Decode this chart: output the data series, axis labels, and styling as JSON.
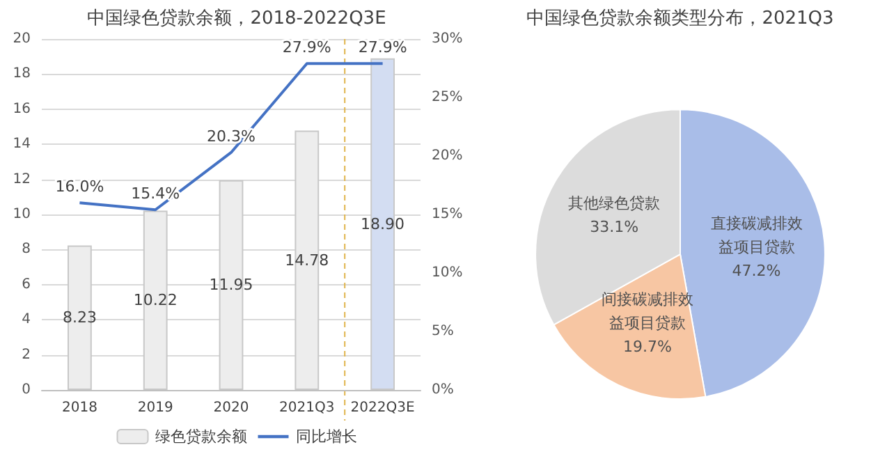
{
  "chart_data": [
    {
      "type": "bar",
      "title": "中国绿色贷款余额，2018-2022Q3E",
      "categories": [
        "2018",
        "2019",
        "2020",
        "2021Q3",
        "2022Q3E"
      ],
      "series": [
        {
          "name": "绿色贷款余额",
          "type": "bar",
          "colors": [
            "#ededed",
            "#ededed",
            "#ededed",
            "#ededed",
            "#d3ddf2"
          ],
          "values": [
            8.23,
            10.22,
            11.95,
            14.78,
            18.9
          ],
          "value_labels": [
            "8.23",
            "10.22",
            "11.95",
            "14.78",
            "18.90"
          ]
        },
        {
          "name": "同比增长",
          "type": "line",
          "axis": "y2",
          "color": "#4472c4",
          "values": [
            16.0,
            15.4,
            20.3,
            27.9,
            27.9
          ],
          "value_labels": [
            "16.0%",
            "15.4%",
            "20.3%",
            "27.9%",
            "27.9%"
          ]
        }
      ],
      "ylim": [
        0,
        20
      ],
      "yticks": [
        0,
        2,
        4,
        6,
        8,
        10,
        12,
        14,
        16,
        18,
        20
      ],
      "y2lim": [
        0,
        30
      ],
      "y2ticks": [
        {
          "value": 0,
          "label": "0%"
        },
        {
          "value": 5,
          "label": "5%"
        },
        {
          "value": 10,
          "label": "10%"
        },
        {
          "value": 15,
          "label": "15%"
        },
        {
          "value": 20,
          "label": "20%"
        },
        {
          "value": 25,
          "label": "25%"
        },
        {
          "value": 30,
          "label": "30%"
        }
      ],
      "ref_lines": [
        {
          "axis": "x",
          "value": "2022Q3E",
          "color": "#e0b44a",
          "line_style": "dashed"
        }
      ],
      "grid": "y",
      "legend": "bottom",
      "marker": "none"
    },
    {
      "type": "pie",
      "title": "中国绿色贷款余额类型分布，2021Q3",
      "categories": [
        "直接碳减排效益项目贷款",
        "间接碳减排效益项目贷款",
        "其他绿色贷款"
      ],
      "values": [
        47.2,
        19.7,
        33.1
      ],
      "colors": [
        "#a9bde8",
        "#f7c6a3",
        "#dcdcdc"
      ],
      "value_labels": [
        "47.2%",
        "19.7%",
        "33.1%"
      ]
    }
  ]
}
